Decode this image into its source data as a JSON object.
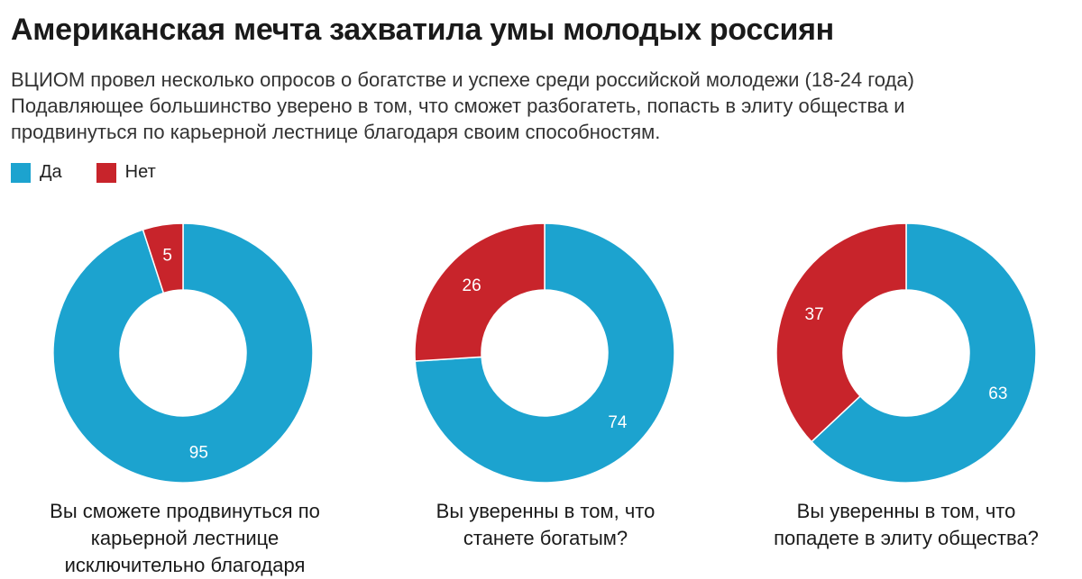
{
  "title": "Американская мечта захватила умы молодых россиян",
  "subtitle_lines": [
    "ВЦИОМ провел несколько опросов о богатстве и успехе среди российской молодежи (18-24 года)",
    "Подавляющее большинство уверено в том, что сможет разбогатеть, попасть в элиту общества и",
    "продвинуться по карьерной лестнице благодаря своим способностям."
  ],
  "legend": [
    {
      "label": "Да",
      "color": "#1ca3cf"
    },
    {
      "label": "Нет",
      "color": "#c8242b"
    }
  ],
  "chart_data": [
    {
      "type": "pie",
      "variant": "donut",
      "title": "Вы сможете продвинуться по карьерной лестнице исключительно благодаря",
      "caption_lines": [
        "Вы сможете продвинуться по",
        "карьерной лестнице",
        "исключительно благодаря"
      ],
      "categories": [
        "Да",
        "Нет"
      ],
      "values": [
        95,
        5
      ],
      "colors": [
        "#1ca3cf",
        "#c8242b"
      ]
    },
    {
      "type": "pie",
      "variant": "donut",
      "title": "Вы уверенны в том, что станете богатым?",
      "caption_lines": [
        "Вы уверенны в том, что",
        "станете богатым?"
      ],
      "categories": [
        "Да",
        "Нет"
      ],
      "values": [
        74,
        26
      ],
      "colors": [
        "#1ca3cf",
        "#c8242b"
      ]
    },
    {
      "type": "pie",
      "variant": "donut",
      "title": "Вы уверенны в том, что попадете в элиту общества?",
      "caption_lines": [
        "Вы уверенны в том, что",
        "попадете в элиту общества?"
      ],
      "categories": [
        "Да",
        "Нет"
      ],
      "values": [
        63,
        37
      ],
      "colors": [
        "#1ca3cf",
        "#c8242b"
      ]
    }
  ]
}
